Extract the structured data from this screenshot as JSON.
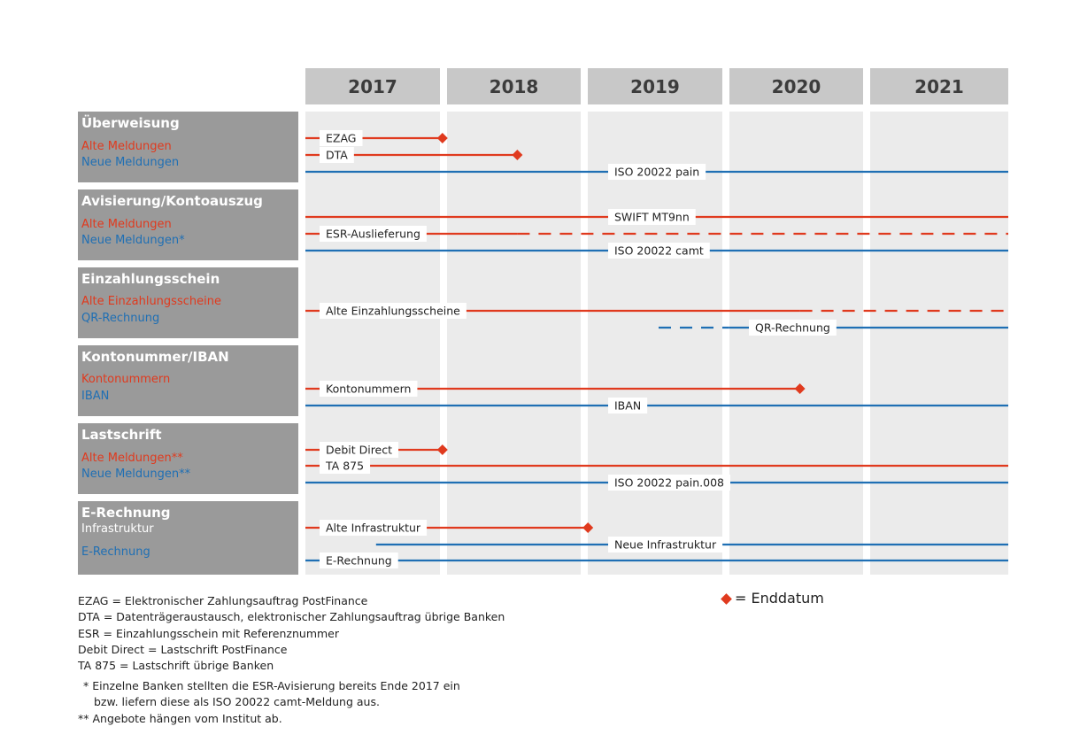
{
  "years": [
    "2017",
    "2018",
    "2019",
    "2020",
    "2021"
  ],
  "colors": {
    "red": "#e03a1e",
    "blue": "#1f6fb4",
    "grey": "#9a9a9a"
  },
  "categories": [
    {
      "title": "Überweisung",
      "line1": "Alte Meldungen",
      "line2": "Neue Meldungen"
    },
    {
      "title": "Avisierung/Kontoauszug",
      "line1": "Alte Meldungen",
      "line2": "Neue Meldungen*"
    },
    {
      "title": "Einzahlungsschein",
      "line1": "Alte Einzahlungsscheine",
      "line2": "QR-Rechnung"
    },
    {
      "title": "Kontonummer/IBAN",
      "line1": "Kontonummern",
      "line2": "IBAN"
    },
    {
      "title": "Lastschrift",
      "line1": "Alte Meldungen**",
      "line2": "Neue Meldungen**"
    },
    {
      "title": "E-Rechnung",
      "line1": "Infrastruktur",
      "line2": "E-Rechnung"
    }
  ],
  "timelines": [
    {
      "label": "EZAG",
      "color": "red",
      "start": 2017.0,
      "end": 2017.97,
      "dashed_from": null,
      "end_diamond": true,
      "category": 0
    },
    {
      "label": "DTA",
      "color": "red",
      "start": 2017.0,
      "end": 2018.5,
      "dashed_from": null,
      "end_diamond": true,
      "category": 0
    },
    {
      "label": "ISO 20022 pain",
      "color": "blue",
      "start": 2017.0,
      "end": 2022.0,
      "dashed_from": null,
      "end_diamond": false,
      "category": 0
    },
    {
      "label": "SWIFT MT9nn",
      "color": "red",
      "start": 2017.0,
      "end": 2022.0,
      "dashed_from": null,
      "end_diamond": false,
      "category": 1
    },
    {
      "label": "ESR-Auslieferung",
      "color": "red",
      "start": 2017.0,
      "end": 2022.0,
      "dashed_from": 2018.5,
      "end_diamond": false,
      "category": 1
    },
    {
      "label": "ISO 20022 camt",
      "color": "blue",
      "start": 2017.0,
      "end": 2022.0,
      "dashed_from": null,
      "end_diamond": false,
      "category": 1
    },
    {
      "label": "Alte Einzahlungsscheine",
      "color": "red",
      "start": 2017.0,
      "end": 2022.0,
      "dashed_from": 2020.5,
      "end_diamond": false,
      "category": 2
    },
    {
      "label": "QR-Rechnung",
      "color": "blue",
      "start": 2019.5,
      "end": 2022.0,
      "dashed_until": 2020.0,
      "end_diamond": false,
      "category": 2
    },
    {
      "label": "Kontonummern",
      "color": "red",
      "start": 2017.0,
      "end": 2020.5,
      "dashed_from": null,
      "end_diamond": true,
      "category": 3
    },
    {
      "label": "IBAN",
      "color": "blue",
      "start": 2017.0,
      "end": 2022.0,
      "dashed_from": null,
      "end_diamond": false,
      "category": 3
    },
    {
      "label": "Debit Direct",
      "color": "red",
      "start": 2017.0,
      "end": 2017.97,
      "dashed_from": null,
      "end_diamond": true,
      "category": 4
    },
    {
      "label": "TA 875",
      "color": "red",
      "start": 2017.0,
      "end": 2022.0,
      "dashed_from": null,
      "end_diamond": false,
      "category": 4
    },
    {
      "label": "ISO 20022 pain.008",
      "color": "blue",
      "start": 2017.0,
      "end": 2022.0,
      "dashed_from": null,
      "end_diamond": false,
      "category": 4
    },
    {
      "label": "Alte Infrastruktur",
      "color": "red",
      "start": 2017.0,
      "end": 2019.0,
      "dashed_from": null,
      "end_diamond": true,
      "category": 5
    },
    {
      "label": "Neue Infrastruktur",
      "color": "blue",
      "start": 2017.5,
      "end": 2022.0,
      "dashed_from": null,
      "end_diamond": false,
      "category": 5
    },
    {
      "label": "E-Rechnung",
      "color": "blue",
      "start": 2017.0,
      "end": 2022.0,
      "dashed_from": null,
      "end_diamond": false,
      "category": 5
    }
  ],
  "legend": {
    "text": "= Enddatum"
  },
  "footnotes": [
    "EZAG = Elektronischer Zahlungsauftrag PostFinance",
    "DTA = Datenträgeraustausch, elektronischer Zahlungsauftrag übrige Banken",
    "ESR = Einzahlungsschein mit Referenznummer",
    "Debit Direct = Lastschrift PostFinance",
    "TA 875 = Lastschrift übrige Banken",
    "* Einzelne Banken stellten die ESR-Avisierung bereits Ende 2017 ein",
    "bzw. liefern diese als ISO 20022 camt-Meldung aus.",
    "** Angebote hängen vom Institut ab."
  ]
}
